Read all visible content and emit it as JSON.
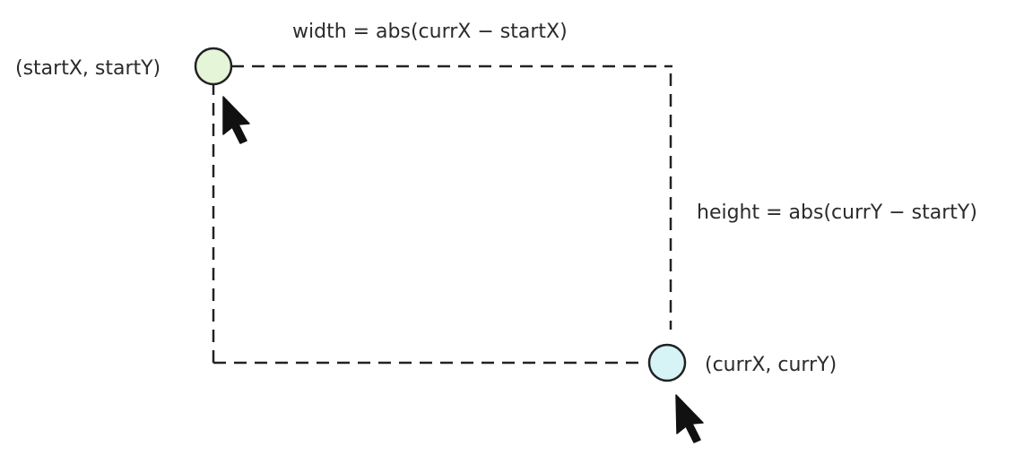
{
  "labels": {
    "start_point": "(startX, startY)",
    "current_point": "(currX, currY)",
    "width_formula": "width = abs(currX − startX)",
    "height_formula": "height = abs(currY − startY)"
  },
  "colors": {
    "stroke": "#222222",
    "start_handle_fill": "#e4f5d8",
    "current_handle_fill": "#d6f3f5",
    "cursor": "#111111",
    "text": "#2b2b2b"
  },
  "icons": {
    "start_handle": "circle",
    "current_handle": "circle",
    "start_cursor": "mouse-pointer",
    "current_cursor": "mouse-pointer"
  }
}
